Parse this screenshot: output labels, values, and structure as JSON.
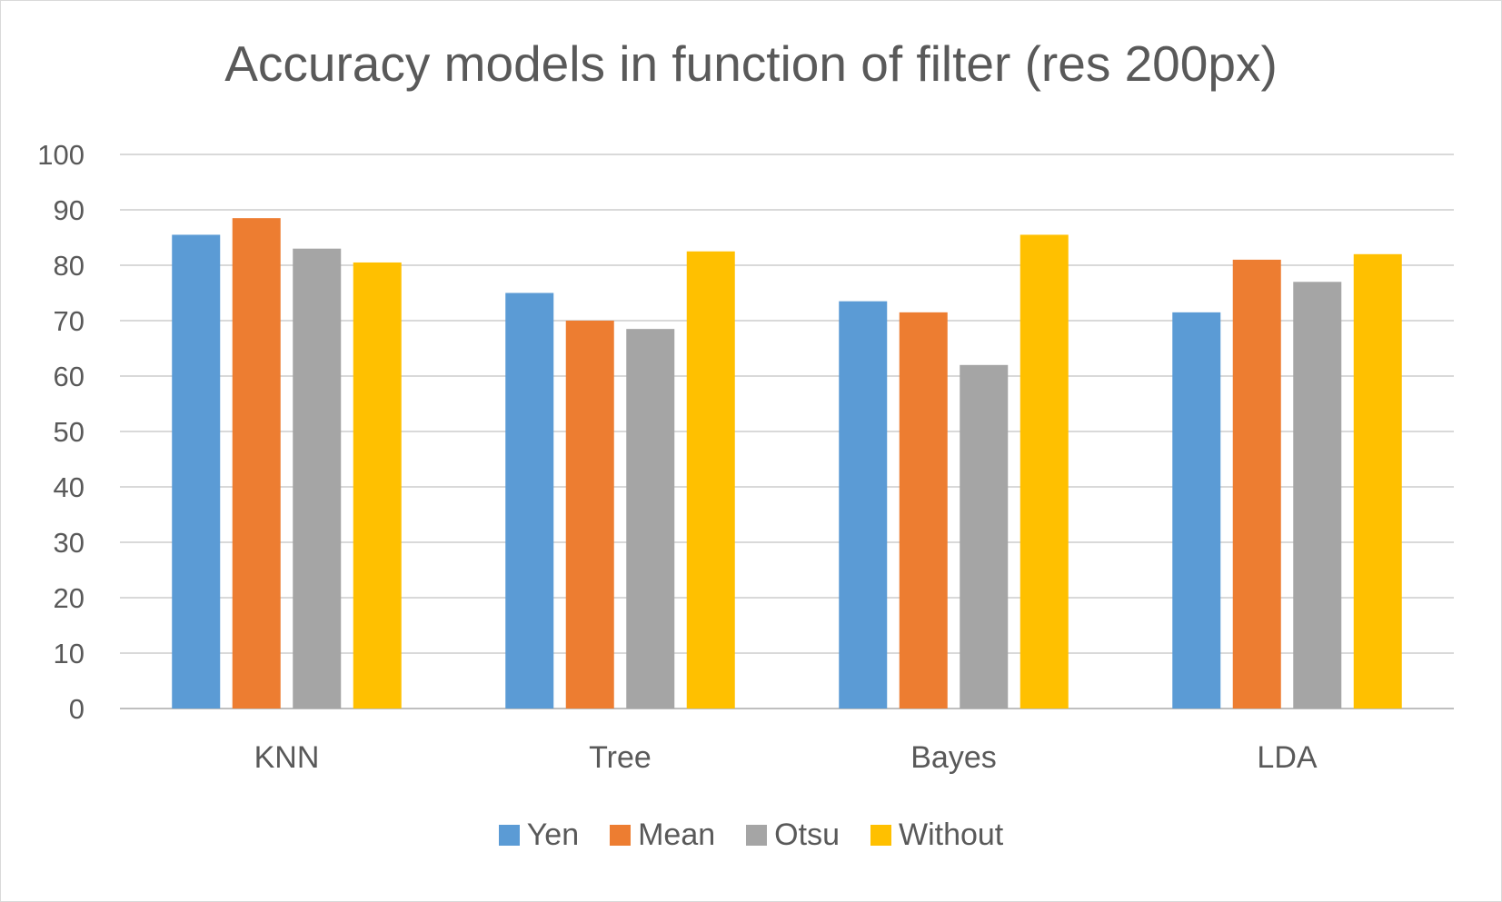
{
  "chart_data": {
    "type": "bar",
    "title": "Accuracy models in function of filter (res 200px)",
    "categories": [
      "KNN",
      "Tree",
      "Bayes",
      "LDA"
    ],
    "series": [
      {
        "name": "Yen",
        "color": "#5b9bd5",
        "values": [
          85.5,
          75,
          73.5,
          71.5
        ]
      },
      {
        "name": "Mean",
        "color": "#ed7d31",
        "values": [
          88.5,
          70,
          71.5,
          81
        ]
      },
      {
        "name": "Otsu",
        "color": "#a5a5a5",
        "values": [
          83,
          68.5,
          62,
          77
        ]
      },
      {
        "name": "Without",
        "color": "#ffc000",
        "values": [
          80.5,
          82.5,
          85.5,
          82
        ]
      }
    ],
    "yticks": [
      "0",
      "10",
      "20",
      "30",
      "40",
      "50",
      "60",
      "70",
      "80",
      "90",
      "100"
    ],
    "ylim": [
      0,
      100
    ],
    "grid": true,
    "legend": "bottom"
  }
}
